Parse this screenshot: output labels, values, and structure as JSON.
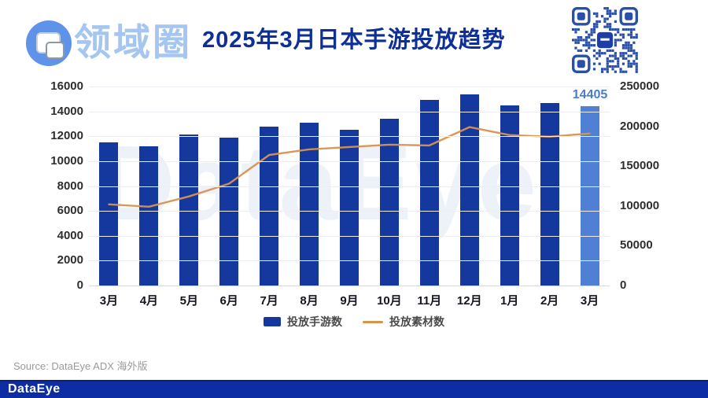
{
  "header": {
    "logo_text": "领域圈",
    "title": "2025年3月日本手游投放趋势"
  },
  "watermark": "DataEye",
  "chart_data": {
    "type": "bar",
    "categories": [
      "3月",
      "4月",
      "5月",
      "6月",
      "7月",
      "8月",
      "9月",
      "10月",
      "11月",
      "12月",
      "1月",
      "2月",
      "3月"
    ],
    "series": [
      {
        "name": "投放手游数",
        "type": "bar",
        "axis": "left",
        "values": [
          11500,
          11200,
          12150,
          11900,
          12800,
          13100,
          12550,
          13400,
          14950,
          15400,
          14500,
          14700,
          14405
        ]
      },
      {
        "name": "投放素材数",
        "type": "line",
        "axis": "right",
        "values": [
          102000,
          99000,
          112000,
          128000,
          164000,
          171000,
          174000,
          177000,
          176000,
          199000,
          189000,
          187000,
          191000
        ]
      }
    ],
    "left_axis": {
      "min": 0,
      "max": 16000,
      "ticks": [
        0,
        2000,
        4000,
        6000,
        8000,
        10000,
        12000,
        14000,
        16000
      ]
    },
    "right_axis": {
      "min": 0,
      "max": 250000,
      "ticks": [
        0,
        50000,
        100000,
        150000,
        200000,
        250000
      ]
    },
    "highlight_index": 12,
    "highlight_label": "14405",
    "grid": true,
    "legend_position": "bottom",
    "colors": {
      "bar": "#14389d",
      "bar_highlight": "#4f80d4",
      "line": "#d8924d",
      "highlight_label": "#4a7ccc",
      "title": "#0e2f96",
      "qr": "#2a4fa8",
      "qr_center": "#1d3da8"
    }
  },
  "legend": [
    {
      "label": "投放手游数",
      "type": "bar"
    },
    {
      "label": "投放素材数",
      "type": "line"
    }
  ],
  "source": "Source: DataEye ADX 海外版",
  "footer": {
    "brand": "DataEye"
  }
}
